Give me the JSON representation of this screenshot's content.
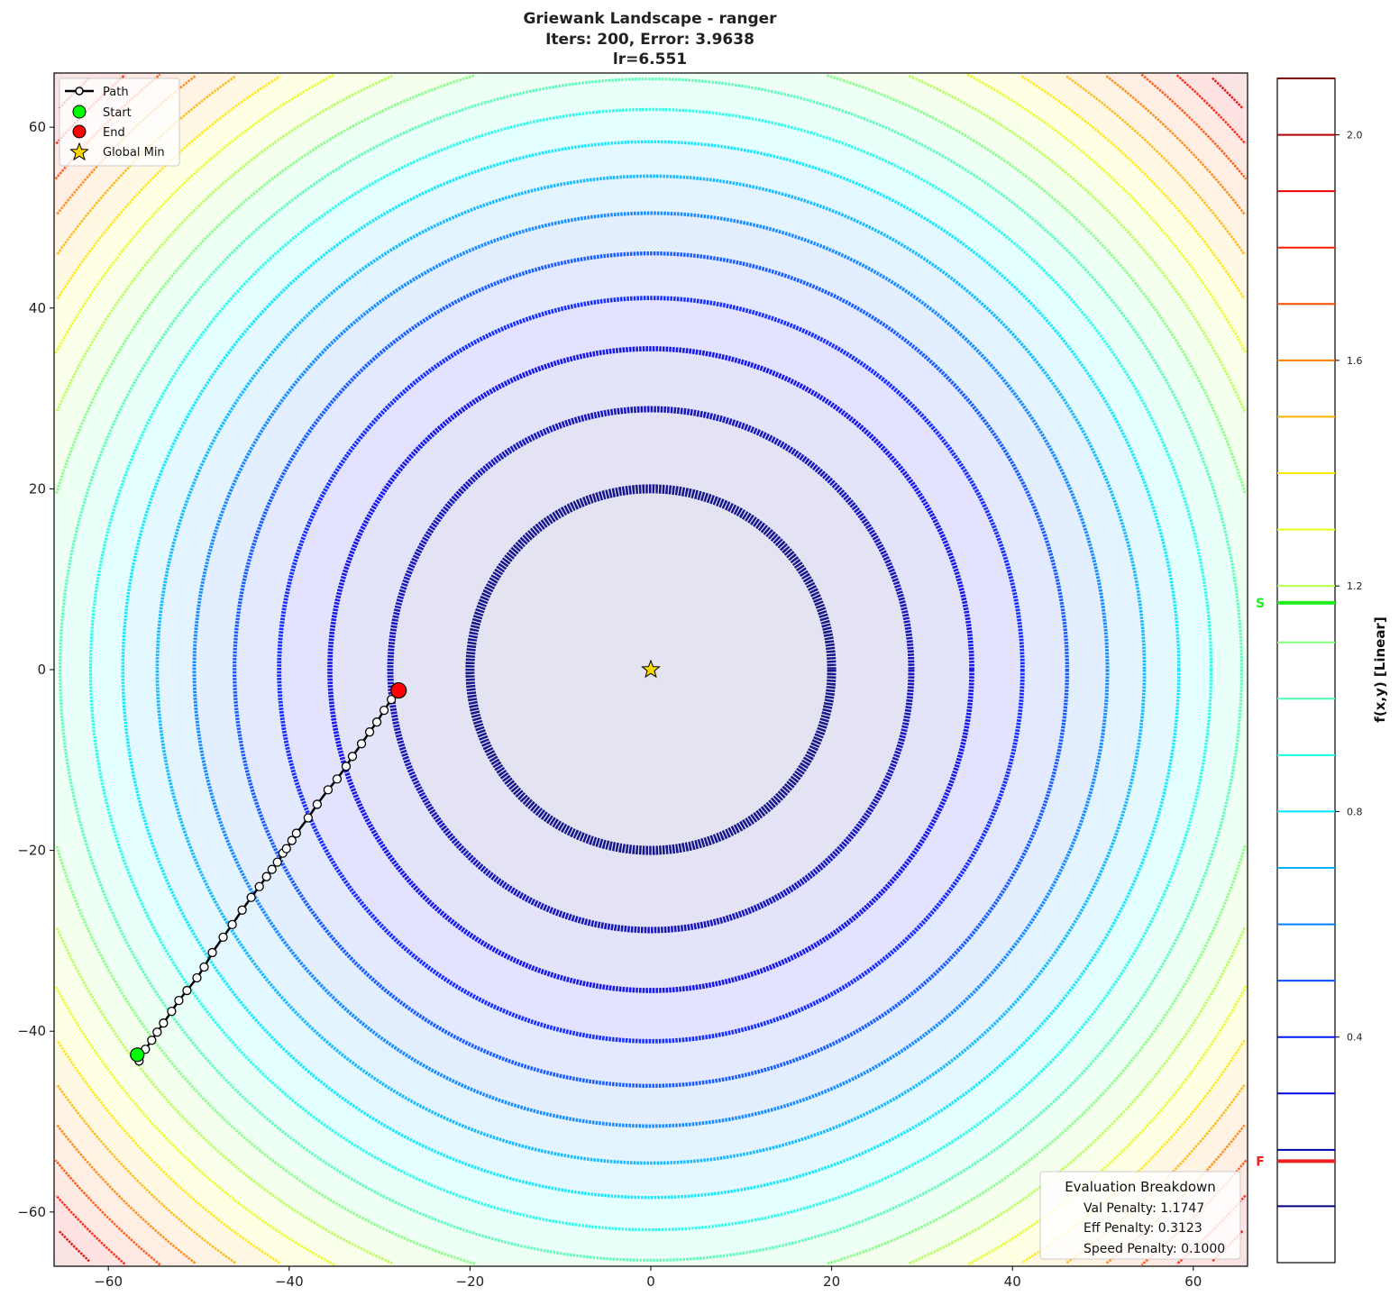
{
  "chart_data": {
    "type": "contour",
    "title": [
      "Griewank Landscape - ranger",
      "Iters: 200, Error: 3.9638",
      "lr=6.551"
    ],
    "xlim": [
      -66,
      66
    ],
    "ylim": [
      -66,
      66
    ],
    "xticks": [
      -60,
      -40,
      -20,
      0,
      20,
      40,
      60
    ],
    "yticks": [
      -60,
      -40,
      -20,
      0,
      20,
      40,
      60
    ],
    "xtick_labels": [
      "−60",
      "−40",
      "−20",
      "0",
      "20",
      "40",
      "60"
    ],
    "ytick_labels": [
      "−60",
      "−40",
      "−20",
      "0",
      "20",
      "40",
      "60"
    ],
    "colormap": "jet",
    "contour_levels": [
      0.1,
      0.2,
      0.3,
      0.4,
      0.5,
      0.6,
      0.7,
      0.8,
      0.9,
      1.0,
      1.1,
      1.2,
      1.3,
      1.4,
      1.5,
      1.6,
      1.7,
      1.8,
      1.9,
      2.0,
      2.1
    ],
    "colorbar": {
      "label": "f(x,y) [Linear]",
      "range": [
        0,
        2.1
      ],
      "ticks": [
        0.4,
        0.8,
        1.2,
        1.6,
        2.0
      ],
      "tick_labels": [
        "0.4",
        "0.8",
        "1.2",
        "1.6",
        "2.0"
      ],
      "markers": [
        {
          "label": "S",
          "value": 1.17,
          "color": "#22ee22"
        },
        {
          "label": "F",
          "value": 0.18,
          "color": "#ee2222"
        }
      ]
    },
    "path": [
      [
        -56.6,
        -43.3
      ],
      [
        -55.9,
        -42.0
      ],
      [
        -55.2,
        -41.0
      ],
      [
        -54.6,
        -40.1
      ],
      [
        -53.9,
        -39.1
      ],
      [
        -53.0,
        -37.8
      ],
      [
        -52.2,
        -36.6
      ],
      [
        -51.3,
        -35.5
      ],
      [
        -50.2,
        -34.1
      ],
      [
        -49.4,
        -32.9
      ],
      [
        -48.5,
        -31.3
      ],
      [
        -47.3,
        -29.6
      ],
      [
        -46.3,
        -28.2
      ],
      [
        -45.2,
        -26.6
      ],
      [
        -44.2,
        -25.2
      ],
      [
        -43.3,
        -24.0
      ],
      [
        -42.5,
        -22.9
      ],
      [
        -41.9,
        -22.1
      ],
      [
        -41.3,
        -21.3
      ],
      [
        -40.7,
        -20.3
      ],
      [
        -40.3,
        -19.8
      ],
      [
        -39.7,
        -18.9
      ],
      [
        -39.2,
        -18.1
      ],
      [
        -37.9,
        -16.4
      ],
      [
        -36.9,
        -14.9
      ],
      [
        -35.7,
        -13.3
      ],
      [
        -34.7,
        -12.1
      ],
      [
        -33.7,
        -10.7
      ],
      [
        -33.0,
        -9.6
      ],
      [
        -32.0,
        -8.2
      ],
      [
        -31.1,
        -6.9
      ],
      [
        -30.3,
        -5.8
      ],
      [
        -29.5,
        -4.5
      ],
      [
        -28.7,
        -3.3
      ],
      [
        -27.9,
        -2.3
      ]
    ],
    "start": [
      -56.8,
      -42.6
    ],
    "end": [
      -27.9,
      -2.3
    ],
    "global_min": [
      0,
      0
    ],
    "legend": {
      "placement": "top-left",
      "entries": [
        "Path",
        "Start",
        "End",
        "Global Min"
      ]
    },
    "colors": {
      "start": "#00ff00",
      "end": "#ff0000",
      "global_min": "#ffd700",
      "path": "#000000"
    }
  },
  "evaluation": {
    "title": "Evaluation Breakdown",
    "lines": [
      "Val Penalty: 1.1747",
      "Eff Penalty: 0.3123",
      "Speed Penalty: 0.1000"
    ],
    "placement": "bottom-right"
  }
}
